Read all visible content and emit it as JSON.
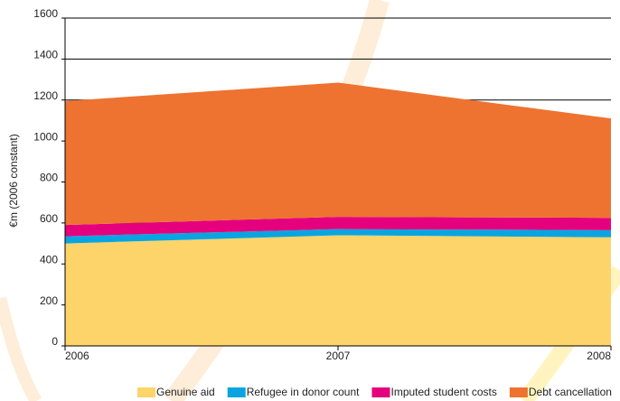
{
  "chart_data": {
    "type": "stacked_area",
    "y_label": "€m (2006 constant)",
    "x": [
      2006,
      2007,
      2008
    ],
    "xlim": [
      2006,
      2008
    ],
    "xticks": [
      2006,
      2007,
      2008
    ],
    "ylim": [
      0,
      1600
    ],
    "yticks": [
      0,
      200,
      400,
      600,
      800,
      1000,
      1200,
      1400,
      1600
    ],
    "grid": true,
    "legend": "bottom",
    "series": [
      {
        "name": "Genuine aid",
        "color": "#fdd46a",
        "values": [
          500,
          540,
          530
        ]
      },
      {
        "name": "Refugee in donor count",
        "color": "#0aa5e0",
        "values": [
          35,
          30,
          35
        ]
      },
      {
        "name": "Imputed student costs",
        "color": "#e5007e",
        "values": [
          55,
          60,
          60
        ]
      },
      {
        "name": "Debt cancellation",
        "color": "#ee7330",
        "values": [
          605,
          655,
          485
        ]
      }
    ]
  }
}
